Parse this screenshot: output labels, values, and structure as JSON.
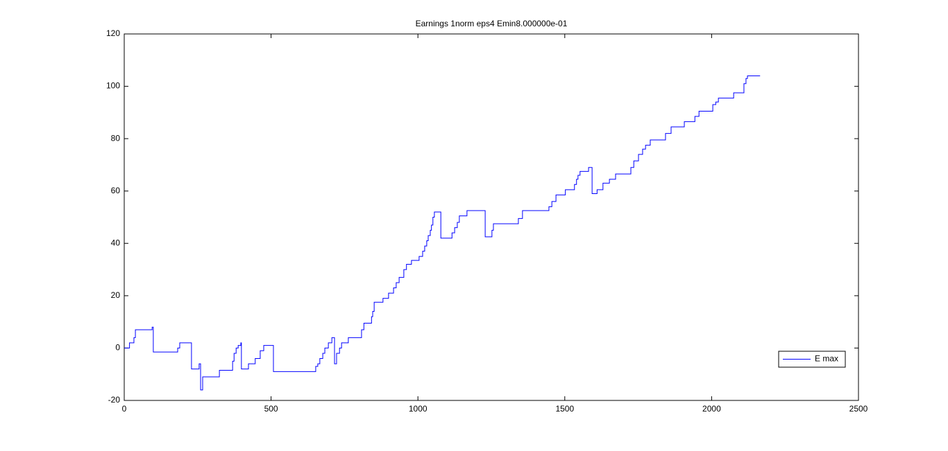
{
  "chart_data": {
    "type": "line",
    "title": "Earnings 1norm eps4 Emin8.000000e-01",
    "drawstyle": "steps-post",
    "xlim": [
      0,
      2500
    ],
    "xticks": [
      0,
      500,
      1000,
      1500,
      2000,
      2500
    ],
    "ylim": [
      -20,
      120
    ],
    "yticks": [
      -20,
      0,
      20,
      40,
      60,
      80,
      100,
      120
    ],
    "legend": "lower right",
    "series": [
      {
        "name": "E max",
        "color": "#0000ff",
        "x": [
          0,
          18,
          33,
          38,
          95,
          99,
          182,
          189,
          229,
          255,
          260,
          267,
          324,
          369,
          374,
          381,
          388,
          397,
          399,
          423,
          446,
          463,
          475,
          508,
          652,
          659,
          666,
          676,
          683,
          695,
          707,
          716,
          723,
          733,
          740,
          763,
          808,
          816,
          842,
          846,
          851,
          881,
          900,
          917,
          926,
          936,
          952,
          961,
          978,
          1004,
          1016,
          1023,
          1030,
          1035,
          1042,
          1046,
          1051,
          1056,
          1078,
          1116,
          1125,
          1134,
          1141,
          1167,
          1229,
          1252,
          1257,
          1342,
          1356,
          1446,
          1456,
          1470,
          1502,
          1533,
          1540,
          1545,
          1552,
          1581,
          1593,
          1610,
          1630,
          1652,
          1673,
          1725,
          1735,
          1751,
          1765,
          1775,
          1791,
          1843,
          1862,
          1907,
          1943,
          1957,
          2004,
          2014,
          2023,
          2075,
          2110,
          2117,
          2122,
          2165
        ],
        "values": [
          0,
          2,
          4,
          7,
          8,
          -1.5,
          0,
          2,
          -8,
          -6,
          -16,
          -11,
          -8.5,
          -5,
          -2,
          0,
          1,
          2,
          -8,
          -6,
          -4,
          -1,
          1,
          -9,
          -7,
          -6,
          -4,
          -2,
          0,
          2,
          4,
          -6,
          -2,
          0,
          2,
          4,
          7,
          9.5,
          12,
          14,
          17.5,
          19,
          21,
          23,
          25,
          27,
          30,
          32,
          33.5,
          35,
          37,
          39,
          41,
          43,
          45,
          47,
          50,
          52,
          42,
          44,
          46,
          48,
          50.5,
          52.5,
          42.5,
          45,
          47.5,
          49.5,
          52.5,
          54,
          56,
          58.5,
          60.5,
          62.5,
          64.5,
          66,
          67.5,
          69,
          59,
          60.5,
          63,
          64.5,
          66.5,
          69,
          71.5,
          74,
          76,
          77.5,
          79.5,
          82,
          84.5,
          86.5,
          88.5,
          90.5,
          93,
          94,
          95.5,
          97.5,
          101,
          103,
          104,
          104
        ]
      }
    ]
  }
}
